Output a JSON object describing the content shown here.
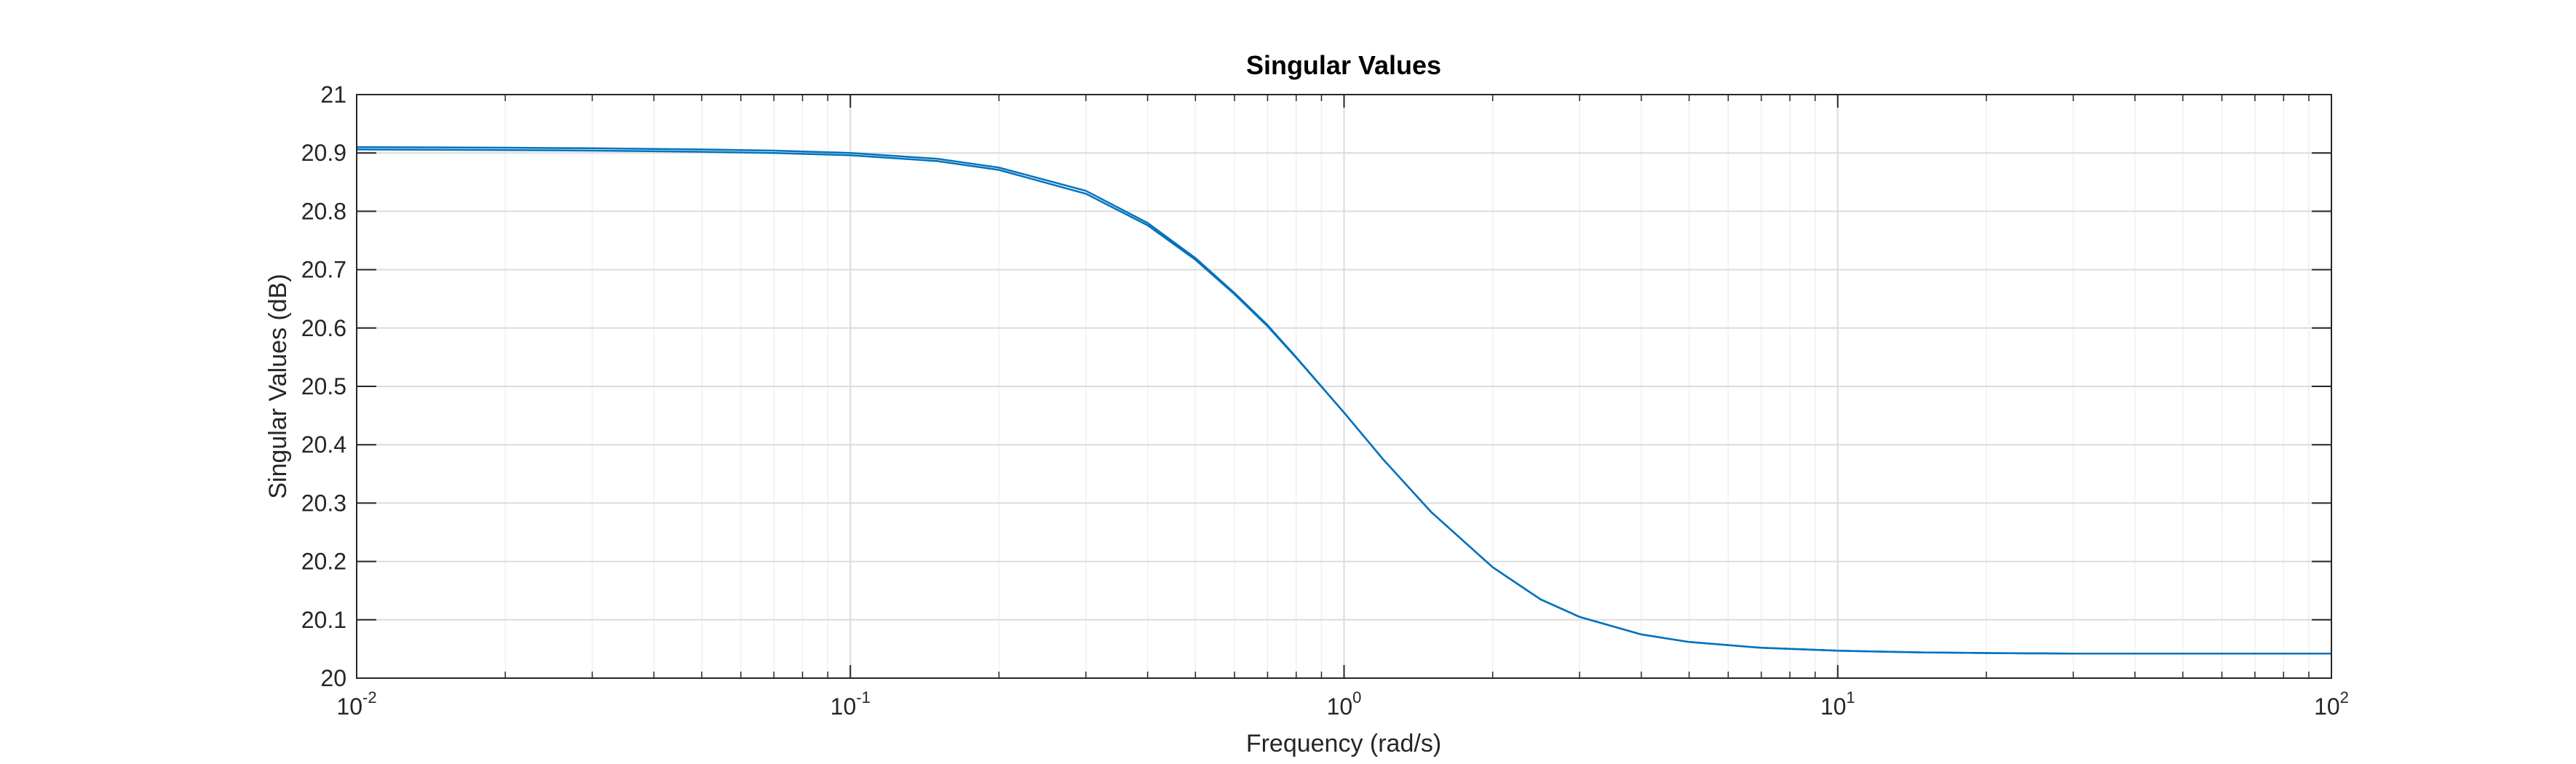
{
  "chart_data": {
    "type": "line",
    "title": "Singular Values",
    "xlabel": "Frequency (rad/s)",
    "ylabel": "Singular Values (dB)",
    "x_scale": "log",
    "xlim": [
      0.01,
      100
    ],
    "ylim": [
      20,
      21
    ],
    "grid": true,
    "minor_grid": true,
    "x_ticks": [
      {
        "base": "10",
        "exp": "-2",
        "value": 0.01
      },
      {
        "base": "10",
        "exp": "-1",
        "value": 0.1
      },
      {
        "base": "10",
        "exp": "0",
        "value": 1
      },
      {
        "base": "10",
        "exp": "1",
        "value": 10
      },
      {
        "base": "10",
        "exp": "2",
        "value": 100
      }
    ],
    "y_ticks": [
      "20",
      "20.1",
      "20.2",
      "20.3",
      "20.4",
      "20.5",
      "20.6",
      "20.7",
      "20.8",
      "20.9",
      "21"
    ],
    "line_color": "#0072BD",
    "series": [
      {
        "x": [
          0.01,
          0.02,
          0.03,
          0.05,
          0.07,
          0.1,
          0.15,
          0.2,
          0.3,
          0.4,
          0.5,
          0.6,
          0.7,
          0.8,
          1,
          1.2,
          1.5,
          2,
          2.5,
          3,
          4,
          5,
          7,
          10,
          15,
          20,
          30,
          50,
          100
        ],
        "y": [
          20.91,
          20.909,
          20.908,
          20.906,
          20.904,
          20.9,
          20.89,
          20.875,
          20.835,
          20.78,
          20.72,
          20.66,
          20.605,
          20.55,
          20.455,
          20.375,
          20.285,
          20.19,
          20.135,
          20.105,
          20.075,
          20.062,
          20.052,
          20.047,
          20.044,
          20.043,
          20.042,
          20.042,
          20.042
        ]
      },
      {
        "x": [
          0.01,
          0.02,
          0.03,
          0.05,
          0.07,
          0.1,
          0.15,
          0.2,
          0.3,
          0.4,
          0.5,
          0.6,
          0.7,
          0.8,
          1,
          1.2,
          1.5,
          2,
          2.5,
          3,
          4,
          5,
          7,
          10,
          15,
          20,
          30,
          50,
          100
        ],
        "y": [
          20.906,
          20.905,
          20.904,
          20.902,
          20.9,
          20.896,
          20.886,
          20.871,
          20.83,
          20.776,
          20.717,
          20.658,
          20.603,
          20.549,
          20.455,
          20.375,
          20.285,
          20.19,
          20.135,
          20.105,
          20.075,
          20.062,
          20.052,
          20.047,
          20.044,
          20.043,
          20.042,
          20.042,
          20.042
        ]
      }
    ]
  }
}
